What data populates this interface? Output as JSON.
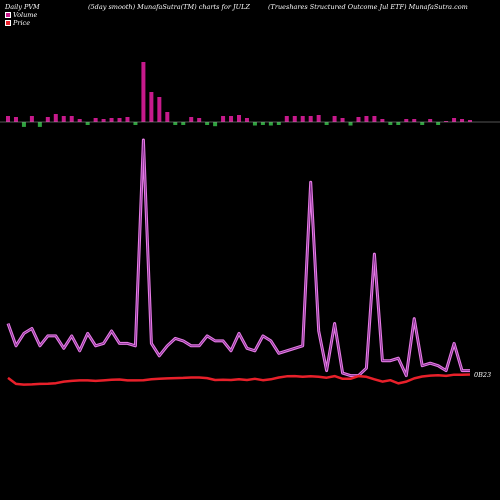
{
  "header": {
    "left": "Daily PVM",
    "middle": "(5day smooth) MunafaSutra(TM) charts for JULZ",
    "right": "(Trueshares Structured Outcome   Jul ETF) MunafaSutra.com"
  },
  "legend": {
    "volume": "Volume",
    "price": "Price"
  },
  "colors": {
    "background": "#000000",
    "volume_up": "#c71a8c",
    "volume_down": "#2fa33f",
    "volume_series_line": "#e57be5",
    "price_line": "#e8202a",
    "baseline": "#aaaaaa"
  },
  "chart_data": {
    "type": "bar+line",
    "last_price_label": "0B23",
    "volume_bars": {
      "values": [
        -6,
        -5,
        -7,
        -6,
        -7,
        -5,
        -8,
        -6,
        -6,
        -3,
        -3,
        -4,
        -3,
        -4,
        -4,
        -5,
        -4,
        -60,
        -30,
        -25,
        -10,
        -3,
        -4,
        -5,
        -4,
        -4,
        -6,
        -6,
        -6,
        -7,
        -4,
        -5,
        -4,
        -5,
        -4,
        -6,
        -6,
        -6,
        -6,
        -7,
        -3,
        -6,
        -4,
        -5,
        -5,
        -6,
        -6,
        -3,
        -2,
        -3,
        -3,
        -3,
        -3,
        -3,
        -3,
        -1,
        -4,
        -3,
        -2
      ],
      "direction": [
        1,
        1,
        -1,
        1,
        -1,
        1,
        1,
        1,
        1,
        1,
        -1,
        1,
        1,
        1,
        1,
        1,
        -1,
        1,
        1,
        1,
        1,
        -1,
        -1,
        1,
        1,
        -1,
        -1,
        1,
        1,
        1,
        1,
        -1,
        -1,
        -1,
        -1,
        1,
        1,
        1,
        1,
        1,
        -1,
        1,
        1,
        -1,
        1,
        1,
        1,
        1,
        -1,
        -1,
        1,
        1,
        -1,
        1,
        -1,
        1,
        1,
        1,
        1
      ]
    },
    "volume_series": [
      26,
      17,
      22,
      24,
      17,
      21,
      21,
      16,
      21,
      15,
      22,
      17,
      18,
      23,
      18,
      18,
      17,
      100,
      18,
      13,
      17,
      20,
      19,
      17,
      17,
      21,
      19,
      19,
      15,
      22,
      16,
      15,
      21,
      19,
      14,
      15,
      16,
      17,
      83,
      23,
      7,
      26,
      6,
      5,
      5,
      8,
      54,
      11,
      11,
      12,
      5,
      28,
      9,
      10,
      9,
      7,
      18,
      7,
      7
    ],
    "price_series": [
      9.6,
      7.0,
      6.7,
      6.8,
      7.0,
      7.1,
      7.3,
      8.0,
      8.3,
      8.5,
      8.5,
      8.3,
      8.5,
      8.8,
      8.9,
      8.5,
      8.5,
      8.6,
      9.0,
      9.2,
      9.4,
      9.5,
      9.6,
      9.8,
      9.8,
      9.5,
      8.7,
      8.8,
      8.7,
      9.0,
      8.7,
      9.2,
      8.6,
      9.0,
      9.8,
      10.3,
      10.4,
      10.1,
      10.3,
      10.1,
      9.7,
      10.4,
      9.2,
      9.2,
      10.4,
      10.1,
      9.0,
      8.0,
      8.6,
      7.2,
      8.0,
      9.4,
      10.2,
      10.6,
      10.8,
      10.5,
      11.0,
      11.0,
      11.1
    ]
  }
}
